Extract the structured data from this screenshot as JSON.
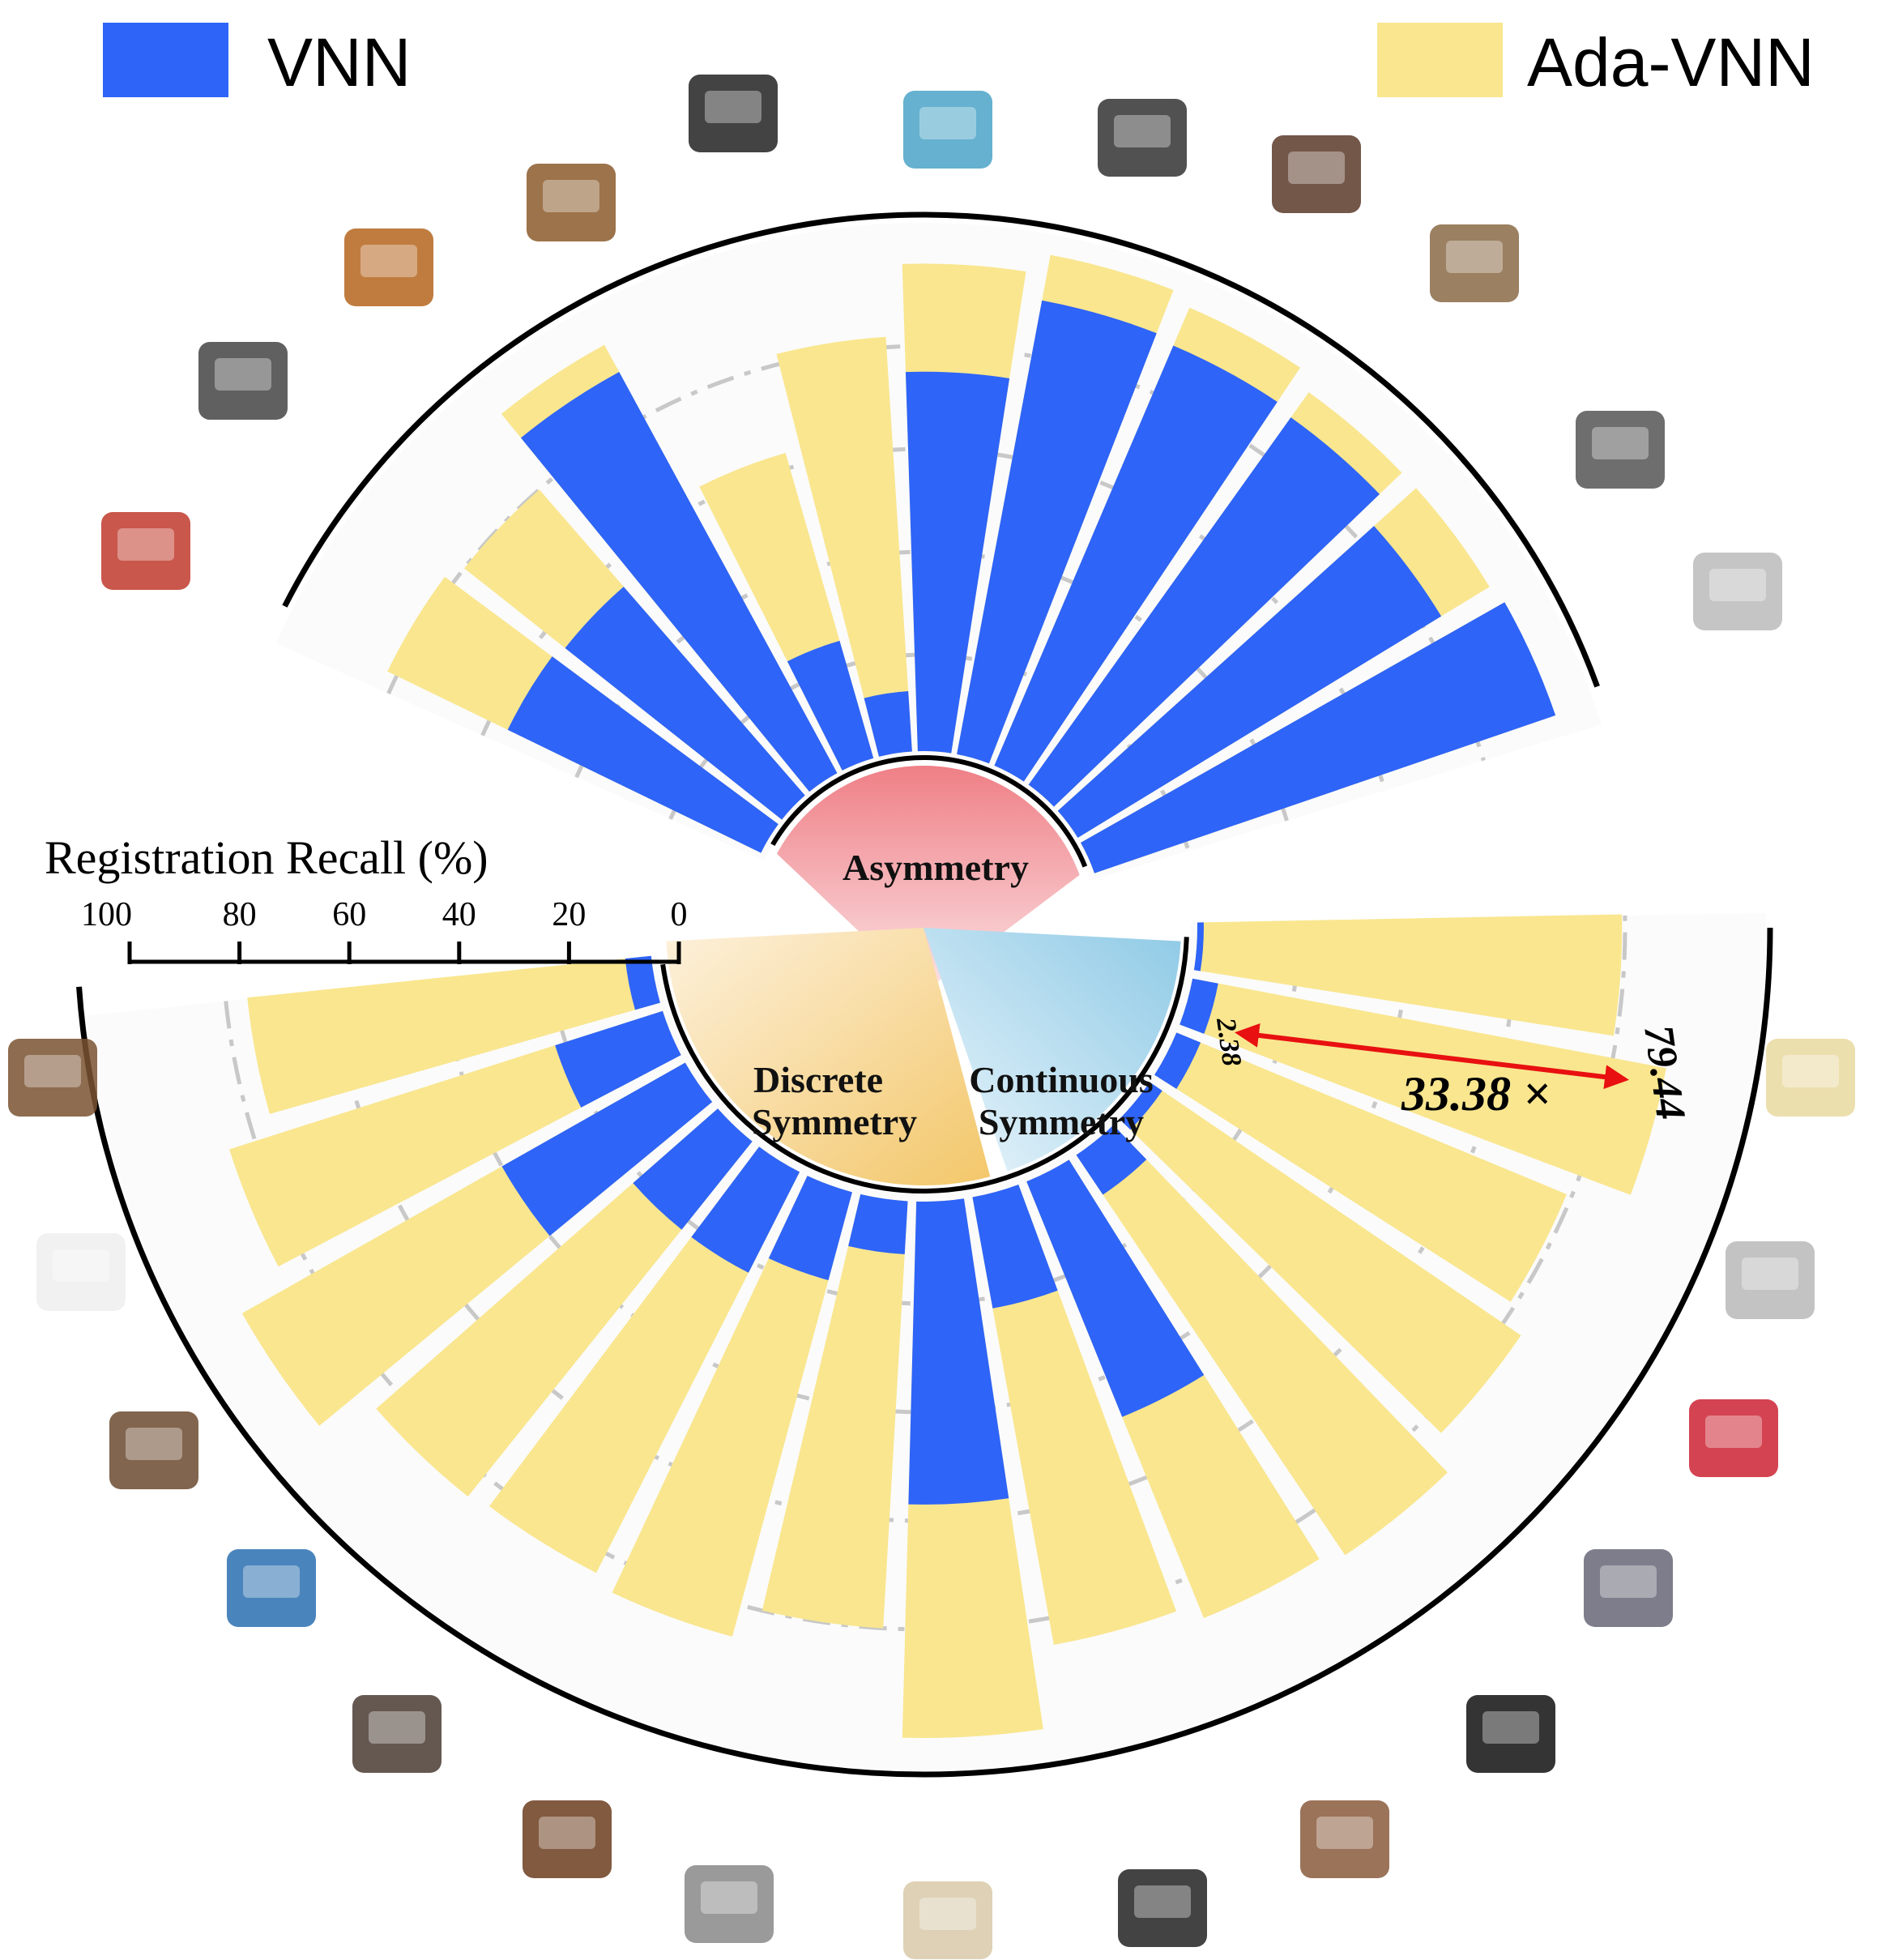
{
  "legend": {
    "items": [
      {
        "label": "VNN",
        "color": "#2e64f7"
      },
      {
        "label": "Ada-VNN",
        "color": "#f9e68f"
      }
    ]
  },
  "axis": {
    "title": "Registration Recall (%)",
    "ticks": [
      "100",
      "80",
      "60",
      "40",
      "20",
      "0"
    ]
  },
  "groups": {
    "asymmetry": "Asymmetry",
    "discrete": [
      "Discrete",
      "Symmetry"
    ],
    "continuous": [
      "Continuous",
      "Symmetry"
    ]
  },
  "annotations": {
    "ratio": "33.38 ×",
    "low_value": "2.38",
    "high_value": "79.44"
  },
  "colors": {
    "vnn": "#2e64f7",
    "ada_vnn": "#f9e68f",
    "asymmetry_fill": "#ef7f86",
    "discrete_fill": "#f3c76a",
    "continuous_fill": "#9fd0e8",
    "highlight_arrow": "#e81010"
  },
  "icons": [
    "bus-icon",
    "laptop-icon",
    "guitar-icon",
    "faucet-icon",
    "walkie-talkie-icon",
    "boat-icon",
    "rifle-icon",
    "armchair-icon",
    "chair-icon",
    "airplane-icon",
    "car-icon",
    "watch-icon",
    "bathtub-icon",
    "bench-icon",
    "monitor-icon",
    "dresser-icon",
    "bookshelf-icon",
    "appliances-icon",
    "desk-icon",
    "phone-icon",
    "mug-icon",
    "speaker-icon",
    "jars-icon",
    "flower-pot-icon",
    "cans-icon",
    "lamp-icon"
  ],
  "chart_data": {
    "type": "bar",
    "subtype": "radial",
    "title": "",
    "ylabel": "Registration Recall (%)",
    "ylim": [
      0,
      100
    ],
    "series_names": [
      "VNN",
      "Ada-VNN"
    ],
    "groups": [
      {
        "name": "Asymmetry",
        "categories": [
          "bus",
          "laptop",
          "guitar",
          "faucet",
          "walkie-talkie",
          "boat",
          "rifle",
          "armchair",
          "chair",
          "airplane",
          "car"
        ],
        "VNN": [
          56,
          55,
          90,
          25,
          13,
          75,
          91,
          90,
          89,
          84,
          96
        ],
        "Ada-VNN": [
          82,
          80,
          96,
          63,
          82,
          96,
          100,
          98,
          95,
          95,
          96
        ]
      },
      {
        "name": "Discrete Symmetry",
        "categories": [
          "watch",
          "bathtub",
          "bench",
          "monitor",
          "dresser",
          "bookshelf",
          "appliances"
        ],
        "VNN": [
          6,
          22,
          40,
          22,
          22,
          18,
          11
        ],
        "Ada-VNN": [
          76,
          85,
          95,
          85,
          84,
          86,
          80
        ]
      },
      {
        "name": "Continuous Symmetry",
        "categories": [
          "desk",
          "phone",
          "mug",
          "speaker",
          "jars",
          "flower pot",
          "cans",
          "lamp"
        ],
        "VNN": [
          57,
          22,
          48,
          10,
          4,
          6,
          6,
          2.38
        ],
        "Ada-VNN": [
          100,
          85,
          88,
          90,
          84,
          79,
          90,
          79.44
        ]
      }
    ]
  }
}
